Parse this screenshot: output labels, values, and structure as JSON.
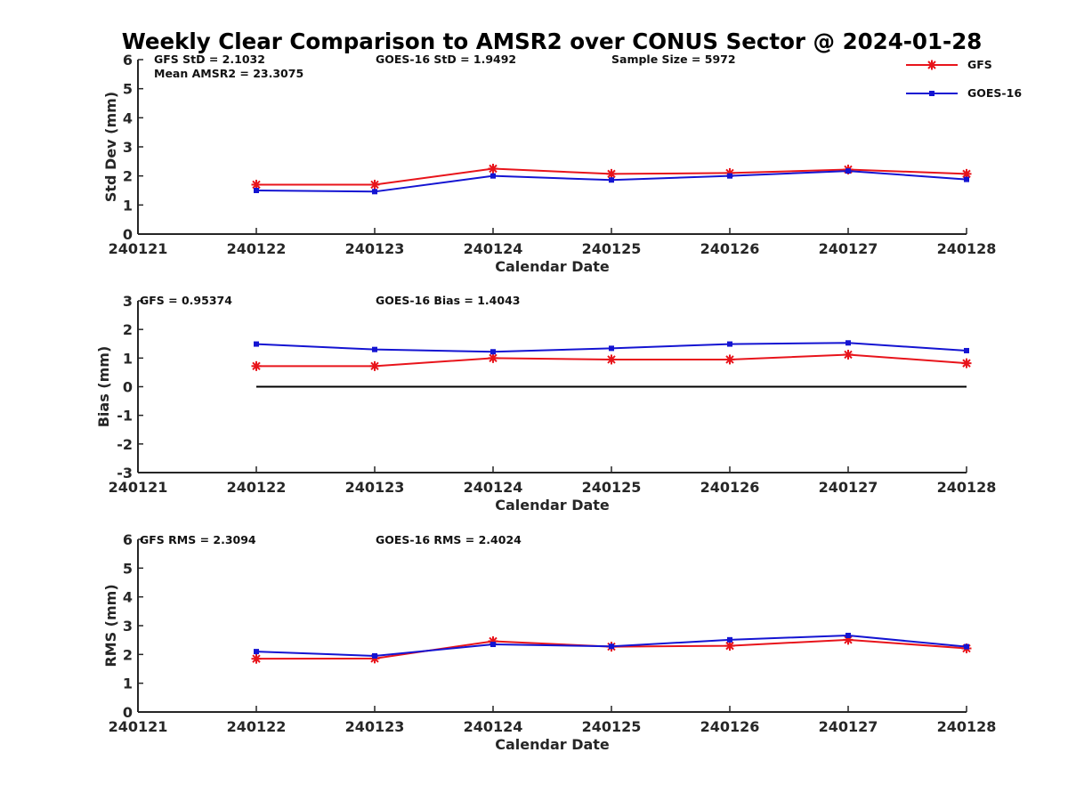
{
  "title": "Weekly Clear Comparison to AMSR2 over CONUS Sector @ 2024-01-28",
  "colors": {
    "gfs": "#e8141b",
    "goes": "#1414d2",
    "axis": "#262626",
    "zero_line": "#000000"
  },
  "legend": {
    "placement": "top-right",
    "items": [
      {
        "label": "GFS",
        "color": "#e8141b",
        "marker": "asterisk"
      },
      {
        "label": "GOES-16",
        "color": "#1414d2",
        "marker": "square"
      }
    ]
  },
  "chart_data": [
    {
      "type": "line",
      "xlabel": "Calendar Date",
      "ylabel": "Std Dev (mm)",
      "x": [
        "240121",
        "240122",
        "240123",
        "240124",
        "240125",
        "240126",
        "240127",
        "240128"
      ],
      "ylim": [
        0,
        6
      ],
      "yticks": [
        "0",
        "1",
        "2",
        "3",
        "4",
        "5",
        "6"
      ],
      "grid": false,
      "annotations": [
        "GFS StD = 2.1032",
        "GOES-16 StD = 1.9492",
        "Sample Size = 5972",
        "Mean AMSR2 = 23.3075"
      ],
      "series": [
        {
          "name": "GFS",
          "x": [
            "240122",
            "240123",
            "240124",
            "240125",
            "240126",
            "240127",
            "240128"
          ],
          "values": [
            1.7,
            1.7,
            2.25,
            2.07,
            2.1,
            2.22,
            2.07
          ]
        },
        {
          "name": "GOES-16",
          "x": [
            "240122",
            "240123",
            "240124",
            "240125",
            "240126",
            "240127",
            "240128"
          ],
          "values": [
            1.5,
            1.46,
            2.0,
            1.86,
            2.0,
            2.17,
            1.88
          ]
        }
      ]
    },
    {
      "type": "line",
      "xlabel": "Calendar Date",
      "ylabel": "Bias (mm)",
      "x": [
        "240121",
        "240122",
        "240123",
        "240124",
        "240125",
        "240126",
        "240127",
        "240128"
      ],
      "ylim": [
        -3,
        3
      ],
      "yticks": [
        "-3",
        "-2",
        "-1",
        "0",
        "1",
        "2",
        "3"
      ],
      "grid": false,
      "reference_line": {
        "y": 0,
        "from": "240122",
        "to": "240128"
      },
      "annotations": [
        "GFS = 0.95374",
        "GOES-16 Bias  = 1.4043"
      ],
      "series": [
        {
          "name": "GFS",
          "x": [
            "240122",
            "240123",
            "240124",
            "240125",
            "240126",
            "240127",
            "240128"
          ],
          "values": [
            0.72,
            0.72,
            1.0,
            0.95,
            0.95,
            1.12,
            0.82
          ]
        },
        {
          "name": "GOES-16",
          "x": [
            "240122",
            "240123",
            "240124",
            "240125",
            "240126",
            "240127",
            "240128"
          ],
          "values": [
            1.49,
            1.3,
            1.22,
            1.34,
            1.49,
            1.53,
            1.26
          ]
        }
      ]
    },
    {
      "type": "line",
      "xlabel": "Calendar Date",
      "ylabel": "RMS (mm)",
      "x": [
        "240121",
        "240122",
        "240123",
        "240124",
        "240125",
        "240126",
        "240127",
        "240128"
      ],
      "ylim": [
        0,
        6
      ],
      "yticks": [
        "0",
        "1",
        "2",
        "3",
        "4",
        "5",
        "6"
      ],
      "grid": false,
      "annotations": [
        "GFS RMS = 2.3094",
        "GOES-16 RMS = 2.4024"
      ],
      "series": [
        {
          "name": "GFS",
          "x": [
            "240122",
            "240123",
            "240124",
            "240125",
            "240126",
            "240127",
            "240128"
          ],
          "values": [
            1.85,
            1.86,
            2.46,
            2.27,
            2.3,
            2.51,
            2.21
          ]
        },
        {
          "name": "GOES-16",
          "x": [
            "240122",
            "240123",
            "240124",
            "240125",
            "240126",
            "240127",
            "240128"
          ],
          "values": [
            2.1,
            1.95,
            2.35,
            2.28,
            2.51,
            2.66,
            2.27
          ]
        }
      ]
    }
  ]
}
